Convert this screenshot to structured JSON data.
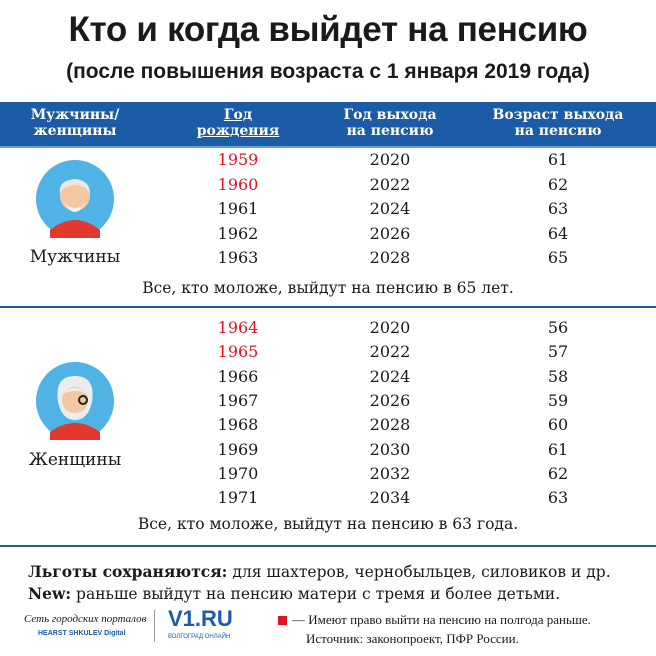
{
  "title": "Кто и когда выйдет на пенсию",
  "subtitle": "(после повышения возраста с 1 января 2019 года)",
  "header": {
    "col1": [
      "Мужчины/",
      "женщины"
    ],
    "col2": [
      "Год",
      "рождения"
    ],
    "col3": [
      "Год выхода",
      "на пенсию"
    ],
    "col4": [
      "Возраст выхода",
      "на пенсию"
    ]
  },
  "men": {
    "label": "Мужчины",
    "rows": [
      {
        "birth": "1959",
        "retire": "2020",
        "age": "61",
        "early": true
      },
      {
        "birth": "1960",
        "retire": "2022",
        "age": "62",
        "early": true
      },
      {
        "birth": "1961",
        "retire": "2024",
        "age": "63",
        "early": false
      },
      {
        "birth": "1962",
        "retire": "2026",
        "age": "64",
        "early": false
      },
      {
        "birth": "1963",
        "retire": "2028",
        "age": "65",
        "early": false
      }
    ],
    "note": "Все, кто моложе, выйдут на пенсию в 65 лет."
  },
  "women": {
    "label": "Женщины",
    "rows": [
      {
        "birth": "1964",
        "retire": "2020",
        "age": "56",
        "early": true
      },
      {
        "birth": "1965",
        "retire": "2022",
        "age": "57",
        "early": true
      },
      {
        "birth": "1966",
        "retire": "2024",
        "age": "58",
        "early": false
      },
      {
        "birth": "1967",
        "retire": "2026",
        "age": "59",
        "early": false
      },
      {
        "birth": "1968",
        "retire": "2028",
        "age": "60",
        "early": false
      },
      {
        "birth": "1969",
        "retire": "2030",
        "age": "61",
        "early": false
      },
      {
        "birth": "1970",
        "retire": "2032",
        "age": "62",
        "early": false
      },
      {
        "birth": "1971",
        "retire": "2034",
        "age": "63",
        "early": false
      }
    ],
    "note": "Все, кто моложе, выйдут на пенсию в 63 года."
  },
  "footer": {
    "benefits_label": "Льготы сохраняются:",
    "benefits_text": " для шахтеров, чернобыльцев, силовиков и др.",
    "new_label": "New:",
    "new_text": " раньше выйдут на пенсию матери с тремя и более детьми.",
    "logo1_line1": "Сеть городских порталов",
    "logo1_line2": "HEARST SHKULEV Digital",
    "logo2": "V1.RU",
    "logo2_sub": "ВОЛГОГРАД ОНЛАЙН",
    "legend": "— Имеют право выйти на пенсию на полгода раньше.",
    "source": "Источник: законопроект, ПФР России."
  },
  "colors": {
    "blue": "#1c5ca6",
    "red": "#e0141e"
  }
}
